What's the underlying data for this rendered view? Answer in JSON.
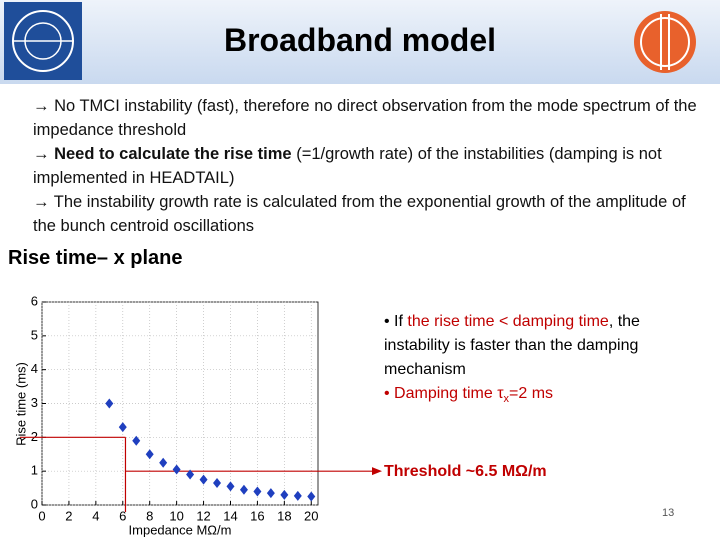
{
  "header": {
    "title": "Broadband model"
  },
  "bullets": [
    [
      {
        "text": "→ No TMCI instability (fast), therefore no direct observation from the mode spectrum of the impedance threshold",
        "style": "normal"
      }
    ],
    [
      {
        "text": "→ ",
        "style": "normal"
      },
      {
        "text": "Need to calculate the rise time",
        "style": "bold"
      },
      {
        "text": " (=1/growth rate) of the instabilities (damping is not implemented in HEADTAIL)",
        "style": "normal"
      }
    ],
    [
      {
        "text": "→ The instability growth rate is calculated from the exponential growth of the amplitude of the bunch centroid oscillations",
        "style": "normal"
      }
    ]
  ],
  "section": "Rise time– x plane",
  "notes": [
    [
      {
        "text": "• If ",
        "style": "normal"
      },
      {
        "text": "the rise time < damping time",
        "style": "red"
      },
      {
        "text": ", the instability is faster than the damping mechanism",
        "style": "normal"
      }
    ],
    [
      {
        "text": "• Damping time τ",
        "style": "red"
      },
      {
        "text": "x",
        "style": "sub-red"
      },
      {
        "text": "=2 ms",
        "style": "red"
      }
    ]
  ],
  "threshold_label": "Threshold ~6.5 MΩ/m",
  "page_number": "13",
  "chart_data": {
    "type": "scatter",
    "x_label": "Impedance MΩ/m",
    "y_label": "Rise time (ms)",
    "x": [
      5,
      6,
      7,
      8,
      9,
      10,
      11,
      12,
      13,
      14,
      15,
      16,
      17,
      18,
      19,
      20
    ],
    "values": [
      3.0,
      2.3,
      1.9,
      1.5,
      1.25,
      1.05,
      0.9,
      0.75,
      0.65,
      0.55,
      0.45,
      0.4,
      0.35,
      0.3,
      0.27,
      0.25
    ],
    "color": "#1f3fbf",
    "xlim": [
      0,
      20.5
    ],
    "ylim": [
      0,
      6
    ],
    "xticks": [
      0,
      2,
      4,
      6,
      8,
      10,
      12,
      14,
      16,
      18,
      20
    ],
    "yticks": [
      0,
      1,
      2,
      3,
      4,
      5,
      6
    ],
    "grid": true,
    "reference_lines": {
      "y": 2,
      "x": 6.2,
      "arrow_y": 1,
      "color": "#c00000"
    }
  }
}
